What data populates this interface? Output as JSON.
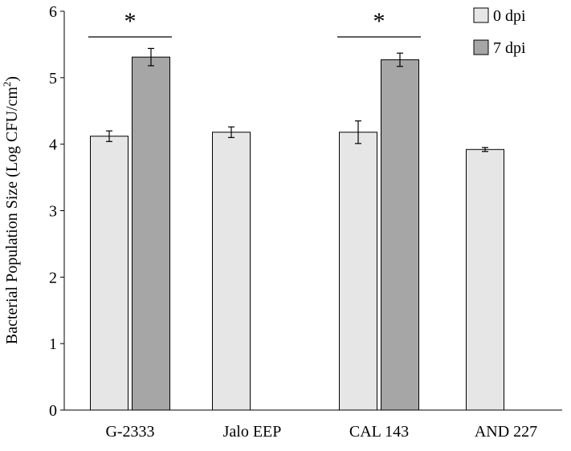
{
  "chart_data": {
    "type": "bar",
    "title": "",
    "xlabel": "",
    "ylabel": "Bacterial Population Size (Log CFU/cm",
    "ylabel_superscript": "2",
    "ylabel_close": ")",
    "ylim": [
      0,
      6
    ],
    "yticks": [
      0,
      1,
      2,
      3,
      4,
      5,
      6
    ],
    "categories": [
      "G-2333",
      "Jalo EEP",
      "CAL 143",
      "AND 227"
    ],
    "series": [
      {
        "name": "0 dpi",
        "color": "#e6e6e6",
        "values": [
          4.12,
          4.18,
          4.18,
          3.92
        ],
        "errors": [
          0.08,
          0.08,
          0.17,
          0.03
        ]
      },
      {
        "name": "7 dpi",
        "color": "#a6a6a6",
        "values": [
          5.31,
          null,
          5.27,
          null
        ],
        "errors": [
          0.13,
          null,
          0.1,
          null
        ]
      }
    ],
    "significance": [
      {
        "category_index": 0,
        "marker": "*"
      },
      {
        "category_index": 2,
        "marker": "*"
      }
    ],
    "grid": false,
    "legend_position": "top-right"
  }
}
